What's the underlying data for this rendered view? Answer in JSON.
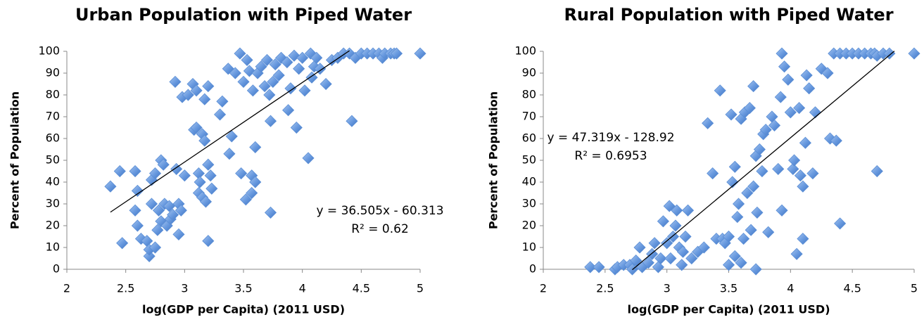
{
  "chart_data": [
    {
      "type": "scatter",
      "title": "Urban Population with Piped Water",
      "xlabel": "log(GDP per Capita) (2011  USD)",
      "ylabel": "Percent of Population",
      "xlim": [
        2,
        5
      ],
      "xticks": [
        2,
        2.5,
        3,
        3.5,
        4,
        4.5,
        5
      ],
      "ylim": [
        0,
        100
      ],
      "yticks": [
        0,
        10,
        20,
        30,
        40,
        50,
        60,
        70,
        80,
        90,
        100
      ],
      "grid": false,
      "color": "#5a8ed6",
      "x": [
        2.37,
        2.45,
        2.47,
        2.58,
        2.58,
        2.6,
        2.6,
        2.63,
        2.68,
        2.7,
        2.7,
        2.72,
        2.72,
        2.75,
        2.75,
        2.77,
        2.78,
        2.8,
        2.8,
        2.82,
        2.83,
        2.85,
        2.87,
        2.88,
        2.9,
        2.92,
        2.93,
        2.95,
        2.95,
        2.97,
        2.98,
        3.0,
        3.03,
        3.07,
        3.08,
        3.1,
        3.1,
        3.12,
        3.12,
        3.13,
        3.15,
        3.15,
        3.17,
        3.17,
        3.18,
        3.2,
        3.2,
        3.2,
        3.22,
        3.23,
        3.3,
        3.32,
        3.37,
        3.38,
        3.4,
        3.43,
        3.47,
        3.48,
        3.5,
        3.52,
        3.53,
        3.55,
        3.57,
        3.57,
        3.58,
        3.6,
        3.6,
        3.62,
        3.65,
        3.68,
        3.7,
        3.72,
        3.73,
        3.73,
        3.75,
        3.77,
        3.8,
        3.82,
        3.87,
        3.88,
        3.9,
        3.93,
        3.95,
        3.97,
        4.0,
        4.02,
        4.05,
        4.07,
        4.08,
        4.1,
        4.12,
        4.15,
        4.2,
        4.25,
        4.3,
        4.35,
        4.4,
        4.42,
        4.45,
        4.5,
        4.55,
        4.6,
        4.65,
        4.68,
        4.7,
        4.75,
        4.78,
        4.8,
        5.0
      ],
      "values": [
        38,
        45,
        12,
        45,
        27,
        36,
        20,
        14,
        13,
        6,
        9,
        30,
        41,
        44,
        10,
        18,
        27,
        50,
        22,
        48,
        30,
        20,
        29,
        23,
        25,
        86,
        46,
        16,
        30,
        27,
        79,
        43,
        80,
        85,
        64,
        65,
        82,
        35,
        44,
        40,
        62,
        33,
        78,
        59,
        31,
        84,
        48,
        13,
        43,
        37,
        71,
        77,
        92,
        53,
        61,
        90,
        99,
        44,
        86,
        32,
        96,
        91,
        35,
        43,
        82,
        56,
        40,
        90,
        93,
        84,
        96,
        80,
        26,
        68,
        86,
        94,
        89,
        97,
        95,
        73,
        83,
        98,
        65,
        92,
        97,
        82,
        51,
        99,
        88,
        93,
        97,
        92,
        85,
        96,
        97,
        99,
        99,
        68,
        97,
        99,
        99,
        99,
        99,
        97,
        99,
        99,
        99,
        99,
        99
      ],
      "trendline": {
        "slope": 36.505,
        "intercept": -60.313,
        "x_range": [
          2.37,
          4.4
        ]
      },
      "equation": "y = 36.505x - 60.313",
      "r_squared": "R² = 0.62"
    },
    {
      "type": "scatter",
      "title": "Rural Population with Piped Water",
      "xlabel": "log(GDP per Capita) (2011  USD)",
      "ylabel": "Percent of Population",
      "xlim": [
        2,
        5
      ],
      "xticks": [
        2,
        2.5,
        3,
        3.5,
        4,
        4.5,
        5
      ],
      "ylim": [
        0,
        100
      ],
      "yticks": [
        0,
        10,
        20,
        30,
        40,
        50,
        60,
        70,
        80,
        90,
        100
      ],
      "grid": false,
      "color": "#5a8ed6",
      "x": [
        2.38,
        2.45,
        2.58,
        2.6,
        2.65,
        2.7,
        2.72,
        2.75,
        2.78,
        2.8,
        2.85,
        2.88,
        2.9,
        2.93,
        2.95,
        2.97,
        3.0,
        3.02,
        3.03,
        3.05,
        3.07,
        3.08,
        3.1,
        3.12,
        3.13,
        3.15,
        3.17,
        3.2,
        3.25,
        3.3,
        3.33,
        3.37,
        3.4,
        3.43,
        3.45,
        3.47,
        3.5,
        3.5,
        3.52,
        3.53,
        3.55,
        3.55,
        3.57,
        3.58,
        3.6,
        3.6,
        3.62,
        3.63,
        3.65,
        3.67,
        3.68,
        3.7,
        3.7,
        3.72,
        3.72,
        3.73,
        3.75,
        3.77,
        3.78,
        3.8,
        3.82,
        3.85,
        3.87,
        3.9,
        3.92,
        3.93,
        3.93,
        3.95,
        3.98,
        4.0,
        4.02,
        4.03,
        4.05,
        4.07,
        4.08,
        4.1,
        4.1,
        4.12,
        4.13,
        4.15,
        4.18,
        4.2,
        4.25,
        4.3,
        4.32,
        4.35,
        4.37,
        4.4,
        4.4,
        4.45,
        4.5,
        4.55,
        4.6,
        4.65,
        4.68,
        4.7,
        4.7,
        4.75,
        4.8,
        5.0
      ],
      "values": [
        1,
        1,
        0,
        1,
        2,
        2,
        0,
        4,
        10,
        1,
        3,
        7,
        12,
        1,
        5,
        22,
        12,
        29,
        5,
        15,
        20,
        27,
        10,
        2,
        8,
        15,
        27,
        5,
        8,
        10,
        67,
        44,
        14,
        82,
        14,
        12,
        15,
        2,
        71,
        40,
        47,
        6,
        24,
        30,
        69,
        3,
        14,
        72,
        35,
        74,
        18,
        84,
        38,
        0,
        52,
        26,
        55,
        45,
        62,
        64,
        17,
        70,
        66,
        46,
        79,
        99,
        27,
        93,
        87,
        72,
        46,
        50,
        7,
        74,
        43,
        38,
        14,
        58,
        89,
        83,
        44,
        72,
        92,
        90,
        60,
        99,
        59,
        99,
        21,
        99,
        99,
        99,
        99,
        99,
        99,
        45,
        98,
        99,
        99,
        99
      ],
      "trendline": {
        "slope": 47.319,
        "intercept": -128.92,
        "x_range": [
          2.72,
          4.84
        ]
      },
      "equation": "y = 47.319x - 128.92",
      "r_squared": "R² = 0.6953"
    }
  ]
}
